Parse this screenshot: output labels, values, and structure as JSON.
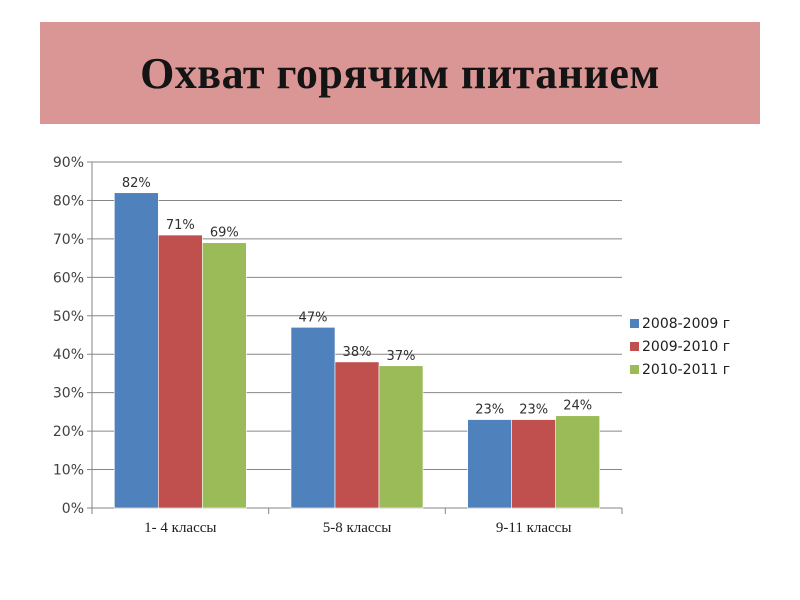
{
  "title": "Охват горячим питанием",
  "chart_data": {
    "type": "bar",
    "categories": [
      "1- 4 классы",
      "5-8 классы",
      "9-11 классы"
    ],
    "series": [
      {
        "name": " 2008-2009 г",
        "values": [
          82,
          47,
          23
        ],
        "labels": [
          "82%",
          "47%",
          "23%"
        ],
        "color": "#4f81bd"
      },
      {
        "name": "2009-2010 г",
        "values": [
          71,
          38,
          23
        ],
        "labels": [
          "71%",
          "38%",
          "23%"
        ],
        "color": "#c0504d"
      },
      {
        "name": "2010-2011 г",
        "values": [
          69,
          37,
          24
        ],
        "labels": [
          "69%",
          "37%",
          "24%"
        ],
        "color": "#9bbb59"
      }
    ],
    "yticks": [
      "0%",
      "10%",
      "20%",
      "30%",
      "40%",
      "50%",
      "60%",
      "70%",
      "80%",
      "90%"
    ],
    "ylim": [
      0,
      90
    ],
    "grid": true,
    "legend": "right",
    "xlabel": "",
    "ylabel": ""
  }
}
